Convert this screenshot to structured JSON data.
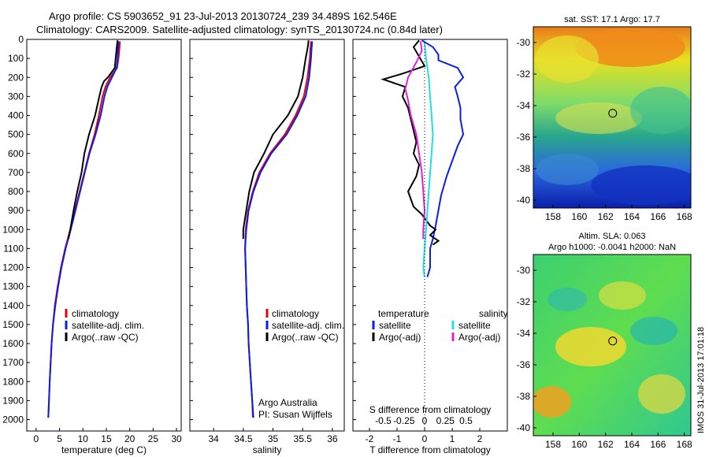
{
  "title": {
    "line1": "Argo profile: CS 5903652_91 23-Jul-2013 20130724_239 34.489S 162.546E",
    "line2": "Climatology: CARS2009. Satellite-adjusted climatology: synTS_20130724.nc (0.84d later)"
  },
  "colors": {
    "clim": "#e3000b",
    "sat": "#0a1ee6",
    "argo": "#000000",
    "sat_s": "#1fe0e0",
    "argo_s": "#e020e0"
  },
  "chart_data": [
    {
      "id": "temperature",
      "type": "line",
      "xlabel": "temperature (deg C)",
      "ylabel": "",
      "xlim": [
        -2,
        31
      ],
      "ylim": [
        2060,
        0
      ],
      "xticks": [
        0,
        5,
        10,
        15,
        20,
        25,
        30
      ],
      "yticks": [
        0,
        100,
        200,
        300,
        400,
        500,
        600,
        700,
        800,
        900,
        1000,
        1100,
        1200,
        1300,
        1400,
        1500,
        1600,
        1700,
        1800,
        1900,
        2000
      ],
      "legend": {
        "placement": "bottom-center",
        "entries": [
          "climatology",
          "satellite-adj. clim.",
          "Argo(..raw -QC)"
        ]
      },
      "series": [
        {
          "name": "climatology",
          "color_key": "clim",
          "points": [
            [
              17.9,
              10
            ],
            [
              17.8,
              50
            ],
            [
              17.6,
              100
            ],
            [
              17.3,
              150
            ],
            [
              15.8,
              200
            ],
            [
              14.8,
              250
            ],
            [
              14.2,
              300
            ],
            [
              13.4,
              400
            ],
            [
              12.5,
              500
            ],
            [
              11.3,
              600
            ],
            [
              10.3,
              700
            ],
            [
              9.3,
              800
            ],
            [
              8.3,
              900
            ],
            [
              7.3,
              1000
            ],
            [
              6.2,
              1100
            ],
            [
              5.3,
              1200
            ],
            [
              4.6,
              1300
            ],
            [
              4.0,
              1400
            ],
            [
              3.6,
              1500
            ],
            [
              3.3,
              1600
            ],
            [
              3.1,
              1700
            ],
            [
              2.9,
              1800
            ],
            [
              2.75,
              1900
            ],
            [
              2.6,
              1990
            ]
          ]
        },
        {
          "name": "satellite-adj. clim.",
          "color_key": "sat",
          "points": [
            [
              17.6,
              10
            ],
            [
              17.5,
              50
            ],
            [
              17.4,
              100
            ],
            [
              17.2,
              150
            ],
            [
              16.2,
              200
            ],
            [
              15.2,
              250
            ],
            [
              14.6,
              300
            ],
            [
              13.8,
              400
            ],
            [
              12.7,
              500
            ],
            [
              11.4,
              600
            ],
            [
              10.4,
              700
            ],
            [
              9.4,
              800
            ],
            [
              8.4,
              900
            ],
            [
              7.4,
              1000
            ],
            [
              6.3,
              1100
            ],
            [
              5.4,
              1200
            ],
            [
              4.7,
              1300
            ],
            [
              4.1,
              1400
            ],
            [
              3.6,
              1500
            ],
            [
              3.3,
              1600
            ],
            [
              3.1,
              1700
            ],
            [
              2.9,
              1800
            ],
            [
              2.75,
              1900
            ],
            [
              2.6,
              1990
            ]
          ]
        },
        {
          "name": "Argo(..raw -QC)",
          "color_key": "argo",
          "points": [
            [
              17.4,
              5
            ],
            [
              17.2,
              50
            ],
            [
              17.0,
              100
            ],
            [
              16.8,
              150
            ],
            [
              15.3,
              200
            ],
            [
              14.5,
              220
            ],
            [
              14.0,
              250
            ],
            [
              13.5,
              300
            ],
            [
              12.6,
              400
            ],
            [
              11.3,
              500
            ],
            [
              10.3,
              600
            ],
            [
              9.7,
              700
            ],
            [
              8.8,
              800
            ],
            [
              8.0,
              900
            ],
            [
              7.3,
              1000
            ],
            [
              6.9,
              1050
            ]
          ]
        }
      ]
    },
    {
      "id": "salinity",
      "type": "line",
      "xlabel": "salinity",
      "ylabel": "",
      "xlim": [
        33.6,
        36.2
      ],
      "ylim": [
        2060,
        0
      ],
      "xticks": [
        34,
        34.5,
        35,
        35.5,
        36
      ],
      "legend": {
        "placement": "bottom-right",
        "entries": [
          "climatology",
          "satellite-adj. clim.",
          "Argo(..raw -QC)"
        ]
      },
      "annotations": [
        "Argo Australia",
        "PI: Susan Wijffels"
      ],
      "series": [
        {
          "name": "climatology",
          "color_key": "clim",
          "points": [
            [
              35.64,
              10
            ],
            [
              35.63,
              50
            ],
            [
              35.62,
              100
            ],
            [
              35.58,
              200
            ],
            [
              35.52,
              300
            ],
            [
              35.38,
              400
            ],
            [
              35.2,
              500
            ],
            [
              34.95,
              600
            ],
            [
              34.77,
              700
            ],
            [
              34.66,
              800
            ],
            [
              34.58,
              900
            ],
            [
              34.54,
              1000
            ],
            [
              34.53,
              1100
            ],
            [
              34.54,
              1200
            ],
            [
              34.55,
              1300
            ],
            [
              34.56,
              1400
            ],
            [
              34.58,
              1500
            ],
            [
              34.59,
              1600
            ],
            [
              34.61,
              1700
            ],
            [
              34.63,
              1800
            ],
            [
              34.65,
              1900
            ],
            [
              34.66,
              1990
            ]
          ]
        },
        {
          "name": "satellite-adj. clim.",
          "color_key": "sat",
          "points": [
            [
              35.66,
              10
            ],
            [
              35.65,
              50
            ],
            [
              35.64,
              100
            ],
            [
              35.61,
              200
            ],
            [
              35.55,
              300
            ],
            [
              35.41,
              400
            ],
            [
              35.23,
              500
            ],
            [
              34.97,
              600
            ],
            [
              34.79,
              700
            ],
            [
              34.67,
              800
            ],
            [
              34.59,
              900
            ],
            [
              34.55,
              1000
            ],
            [
              34.53,
              1100
            ],
            [
              34.54,
              1200
            ],
            [
              34.55,
              1300
            ],
            [
              34.56,
              1400
            ],
            [
              34.58,
              1500
            ],
            [
              34.59,
              1600
            ],
            [
              34.61,
              1700
            ],
            [
              34.63,
              1800
            ],
            [
              34.65,
              1900
            ],
            [
              34.67,
              1990
            ]
          ]
        },
        {
          "name": "Argo(..raw -QC)",
          "color_key": "argo",
          "points": [
            [
              35.6,
              5
            ],
            [
              35.58,
              50
            ],
            [
              35.55,
              100
            ],
            [
              35.5,
              200
            ],
            [
              35.42,
              300
            ],
            [
              35.25,
              400
            ],
            [
              35.0,
              500
            ],
            [
              34.85,
              600
            ],
            [
              34.68,
              700
            ],
            [
              34.6,
              800
            ],
            [
              34.55,
              900
            ],
            [
              34.5,
              1000
            ],
            [
              34.5,
              1050
            ]
          ]
        }
      ]
    },
    {
      "id": "differences",
      "type": "line",
      "xlabel": "T difference from climatology",
      "xlabel_top": "S difference from climatology",
      "xlim": [
        -2.6,
        3.0
      ],
      "ylim": [
        2060,
        0
      ],
      "xticks": [
        -2,
        -1,
        0,
        1,
        2
      ],
      "s_ticks": [
        {
          "label": "-0.5",
          "x": -1.5
        },
        {
          "label": "-0.25",
          "x": -0.75
        },
        {
          "label": "0",
          "x": 0
        },
        {
          "label": "0.25",
          "x": 0.75
        },
        {
          "label": "0.5",
          "x": 1.5
        }
      ],
      "legend": {
        "placement": "bottom",
        "left_title": "temperature",
        "right_title": "salinity",
        "left_entries": [
          "satellite",
          "Argo(-adj)"
        ],
        "right_entries": [
          "satellite",
          "Argo(-adj)"
        ]
      },
      "series": [
        {
          "name": "satellite",
          "group": "temperature",
          "color_key": "sat",
          "points": [
            [
              -0.1,
              5
            ],
            [
              0.3,
              40
            ],
            [
              0.5,
              80
            ],
            [
              0.5,
              110
            ],
            [
              1.2,
              150
            ],
            [
              1.4,
              200
            ],
            [
              1.1,
              250
            ],
            [
              1.2,
              300
            ],
            [
              1.3,
              360
            ],
            [
              1.3,
              420
            ],
            [
              1.4,
              500
            ],
            [
              1.2,
              560
            ],
            [
              1.0,
              640
            ],
            [
              0.8,
              720
            ],
            [
              0.6,
              820
            ],
            [
              0.5,
              900
            ],
            [
              0.4,
              980
            ],
            [
              0.3,
              1050
            ],
            [
              0.2,
              1100
            ],
            [
              0.2,
              1200
            ],
            [
              0.1,
              1250
            ]
          ]
        },
        {
          "name": "Argo(-adj)",
          "group": "temperature",
          "color_key": "argo",
          "points": [
            [
              -0.2,
              5
            ],
            [
              -0.4,
              40
            ],
            [
              -0.2,
              90
            ],
            [
              0.0,
              140
            ],
            [
              -0.8,
              180
            ],
            [
              -1.5,
              210
            ],
            [
              -0.7,
              250
            ],
            [
              -0.8,
              300
            ],
            [
              -0.6,
              360
            ],
            [
              -0.5,
              420
            ],
            [
              -0.4,
              480
            ],
            [
              -0.3,
              540
            ],
            [
              -0.4,
              600
            ],
            [
              -0.2,
              660
            ],
            [
              -0.3,
              720
            ],
            [
              -0.6,
              800
            ],
            [
              -0.4,
              880
            ],
            [
              -0.1,
              920
            ],
            [
              0.2,
              980
            ],
            [
              0.4,
              1000
            ],
            [
              0.2,
              1030
            ],
            [
              0.5,
              1060
            ],
            [
              0.3,
              1080
            ]
          ]
        },
        {
          "name": "satellite",
          "group": "salinity",
          "color_key": "sat_s",
          "points": [
            [
              0.0,
              20
            ],
            [
              0.05,
              100
            ],
            [
              0.15,
              200
            ],
            [
              0.2,
              300
            ],
            [
              0.25,
              400
            ],
            [
              0.3,
              500
            ],
            [
              0.25,
              600
            ],
            [
              0.2,
              700
            ],
            [
              0.15,
              800
            ],
            [
              0.1,
              900
            ],
            [
              0.05,
              1000
            ],
            [
              0.0,
              1100
            ],
            [
              -0.05,
              1200
            ],
            [
              0.0,
              1250
            ]
          ]
        },
        {
          "name": "Argo(-adj)",
          "group": "salinity",
          "color_key": "argo_s",
          "points": [
            [
              -0.15,
              10
            ],
            [
              -0.1,
              60
            ],
            [
              -0.3,
              120
            ],
            [
              -0.6,
              200
            ],
            [
              -0.7,
              260
            ],
            [
              -0.6,
              320
            ],
            [
              -0.5,
              400
            ],
            [
              -0.3,
              500
            ],
            [
              -0.2,
              600
            ],
            [
              -0.1,
              700
            ],
            [
              -0.05,
              800
            ],
            [
              0.0,
              900
            ],
            [
              -0.05,
              1000
            ],
            [
              -0.05,
              1050
            ]
          ]
        }
      ]
    },
    {
      "id": "sst-map",
      "type": "heatmap",
      "title": "sat. SST: 17.1  Argo: 17.7",
      "xlim": [
        156.5,
        168.5
      ],
      "ylim": [
        -40.5,
        -29
      ],
      "xticks": [
        158,
        160,
        162,
        164,
        166,
        168
      ],
      "yticks": [
        -30,
        -32,
        -34,
        -36,
        -38,
        -40
      ],
      "marker": {
        "lon": 162.546,
        "lat": -34.489
      }
    },
    {
      "id": "sla-map",
      "type": "heatmap",
      "title_lines": [
        "Altim. SLA: 0.063",
        "Argo h1000: -0.0041 h2000: NaN"
      ],
      "xlim": [
        156.5,
        168.5
      ],
      "ylim": [
        -40.5,
        -29
      ],
      "xticks": [
        158,
        160,
        162,
        164,
        166,
        168
      ],
      "yticks": [
        -30,
        -32,
        -34,
        -36,
        -38,
        -40
      ],
      "marker": {
        "lon": 162.546,
        "lat": -34.489
      }
    }
  ],
  "timestamp": "IMOS 31-Jul-2013 17:01:18"
}
